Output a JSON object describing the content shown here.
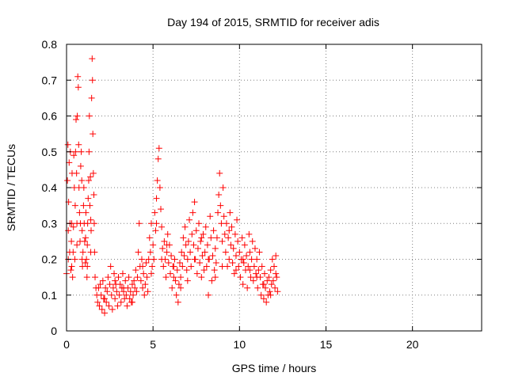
{
  "chart_data": {
    "type": "scatter",
    "title": "Day 194 of 2015, SRMTID for receiver adis",
    "xlabel": "GPS time / hours",
    "ylabel": "SRMTID / TECUs",
    "xlim": [
      0,
      24
    ],
    "ylim": [
      0,
      0.8
    ],
    "xticks": [
      0,
      5,
      10,
      15,
      20
    ],
    "yticks": [
      0,
      0.1,
      0.2,
      0.3,
      0.4,
      0.5,
      0.6,
      0.7,
      0.8
    ],
    "grid": true,
    "marker": "plus",
    "color": "#ff0000",
    "series": [
      {
        "name": "SRMTID",
        "points": [
          [
            0.0,
            0.16
          ],
          [
            0.05,
            0.42
          ],
          [
            0.08,
            0.52
          ],
          [
            0.1,
            0.28
          ],
          [
            0.12,
            0.36
          ],
          [
            0.15,
            0.47
          ],
          [
            0.18,
            0.22
          ],
          [
            0.2,
            0.3
          ],
          [
            0.22,
            0.5
          ],
          [
            0.25,
            0.17
          ],
          [
            0.28,
            0.25
          ],
          [
            0.3,
            0.3
          ],
          [
            0.32,
            0.44
          ],
          [
            0.35,
            0.15
          ],
          [
            0.38,
            0.22
          ],
          [
            0.4,
            0.29
          ],
          [
            0.42,
            0.49
          ],
          [
            0.45,
            0.4
          ],
          [
            0.48,
            0.2
          ],
          [
            0.5,
            0.35
          ],
          [
            0.52,
            0.5
          ],
          [
            0.55,
            0.59
          ],
          [
            0.58,
            0.44
          ],
          [
            0.6,
            0.3
          ],
          [
            0.62,
            0.6
          ],
          [
            0.65,
            0.71
          ],
          [
            0.68,
            0.68
          ],
          [
            0.7,
            0.52
          ],
          [
            0.72,
            0.4
          ],
          [
            0.75,
            0.33
          ],
          [
            0.78,
            0.25
          ],
          [
            0.8,
            0.3
          ],
          [
            0.82,
            0.46
          ],
          [
            0.85,
            0.5
          ],
          [
            0.88,
            0.42
          ],
          [
            0.9,
            0.28
          ],
          [
            0.92,
            0.18
          ],
          [
            0.95,
            0.22
          ],
          [
            0.98,
            0.35
          ],
          [
            1.0,
            0.4
          ],
          [
            1.02,
            0.3
          ],
          [
            1.05,
            0.25
          ],
          [
            1.08,
            0.19
          ],
          [
            1.1,
            0.26
          ],
          [
            1.12,
            0.33
          ],
          [
            1.15,
            0.2
          ],
          [
            1.18,
            0.15
          ],
          [
            1.2,
            0.24
          ],
          [
            1.22,
            0.3
          ],
          [
            1.25,
            0.37
          ],
          [
            1.28,
            0.42
          ],
          [
            1.3,
            0.5
          ],
          [
            1.32,
            0.6
          ],
          [
            1.35,
            0.35
          ],
          [
            1.38,
            0.43
          ],
          [
            1.4,
            0.31
          ],
          [
            1.42,
            0.28
          ],
          [
            1.45,
            0.65
          ],
          [
            1.48,
            0.76
          ],
          [
            1.5,
            0.7
          ],
          [
            1.52,
            0.55
          ],
          [
            1.55,
            0.44
          ],
          [
            1.58,
            0.38
          ],
          [
            1.6,
            0.3
          ],
          [
            1.62,
            0.22
          ],
          [
            1.65,
            0.15
          ],
          [
            1.7,
            0.12
          ],
          [
            1.75,
            0.1
          ],
          [
            1.8,
            0.08
          ],
          [
            1.85,
            0.12
          ],
          [
            1.9,
            0.07
          ],
          [
            1.95,
            0.13
          ],
          [
            2.0,
            0.1
          ],
          [
            2.05,
            0.06
          ],
          [
            2.1,
            0.14
          ],
          [
            2.15,
            0.09
          ],
          [
            2.2,
            0.05
          ],
          [
            2.25,
            0.12
          ],
          [
            2.3,
            0.08
          ],
          [
            2.35,
            0.11
          ],
          [
            2.4,
            0.15
          ],
          [
            2.45,
            0.07
          ],
          [
            2.5,
            0.13
          ],
          [
            2.55,
            0.18
          ],
          [
            2.6,
            0.1
          ],
          [
            2.65,
            0.06
          ],
          [
            2.7,
            0.12
          ],
          [
            2.75,
            0.16
          ],
          [
            2.8,
            0.09
          ],
          [
            2.85,
            0.13
          ],
          [
            2.9,
            0.11
          ],
          [
            2.95,
            0.07
          ],
          [
            3.0,
            0.15
          ],
          [
            3.05,
            0.1
          ],
          [
            3.1,
            0.13
          ],
          [
            3.15,
            0.08
          ],
          [
            3.2,
            0.12
          ],
          [
            3.25,
            0.16
          ],
          [
            3.3,
            0.11
          ],
          [
            3.35,
            0.09
          ],
          [
            3.4,
            0.14
          ],
          [
            3.45,
            0.1
          ],
          [
            3.5,
            0.07
          ],
          [
            3.55,
            0.12
          ],
          [
            3.6,
            0.15
          ],
          [
            3.65,
            0.09
          ],
          [
            3.7,
            0.11
          ],
          [
            3.75,
            0.08
          ],
          [
            3.8,
            0.13
          ],
          [
            3.85,
            0.1
          ],
          [
            3.9,
            0.14
          ],
          [
            3.95,
            0.12
          ],
          [
            4.0,
            0.17
          ],
          [
            4.05,
            0.11
          ],
          [
            4.1,
            0.15
          ],
          [
            4.15,
            0.22
          ],
          [
            4.2,
            0.3
          ],
          [
            4.25,
            0.18
          ],
          [
            4.3,
            0.14
          ],
          [
            4.35,
            0.2
          ],
          [
            4.4,
            0.12
          ],
          [
            4.45,
            0.16
          ],
          [
            4.5,
            0.1
          ],
          [
            4.55,
            0.13
          ],
          [
            4.6,
            0.19
          ],
          [
            4.65,
            0.15
          ],
          [
            4.7,
            0.11
          ],
          [
            4.75,
            0.2
          ],
          [
            4.8,
            0.26
          ],
          [
            4.85,
            0.22
          ],
          [
            4.9,
            0.3
          ],
          [
            4.95,
            0.18
          ],
          [
            5.0,
            0.24
          ],
          [
            5.05,
            0.2
          ],
          [
            5.1,
            0.33
          ],
          [
            5.15,
            0.28
          ],
          [
            5.2,
            0.37
          ],
          [
            5.25,
            0.42
          ],
          [
            5.3,
            0.48
          ],
          [
            5.35,
            0.51
          ],
          [
            5.4,
            0.4
          ],
          [
            5.45,
            0.34
          ],
          [
            5.5,
            0.29
          ],
          [
            5.55,
            0.23
          ],
          [
            5.6,
            0.18
          ],
          [
            5.65,
            0.25
          ],
          [
            5.7,
            0.2
          ],
          [
            5.75,
            0.15
          ],
          [
            5.8,
            0.22
          ],
          [
            5.85,
            0.27
          ],
          [
            5.9,
            0.19
          ],
          [
            5.95,
            0.24
          ],
          [
            6.0,
            0.16
          ],
          [
            6.05,
            0.21
          ],
          [
            6.1,
            0.12
          ],
          [
            6.15,
            0.18
          ],
          [
            6.2,
            0.15
          ],
          [
            6.25,
            0.2
          ],
          [
            6.3,
            0.14
          ],
          [
            6.35,
            0.1
          ],
          [
            6.4,
            0.17
          ],
          [
            6.45,
            0.08
          ],
          [
            6.5,
            0.13
          ],
          [
            6.55,
            0.19
          ],
          [
            6.6,
            0.15
          ],
          [
            6.65,
            0.22
          ],
          [
            6.7,
            0.18
          ],
          [
            6.75,
            0.26
          ],
          [
            6.8,
            0.21
          ],
          [
            6.85,
            0.29
          ],
          [
            6.9,
            0.24
          ],
          [
            6.95,
            0.17
          ],
          [
            7.0,
            0.2
          ],
          [
            7.05,
            0.25
          ],
          [
            7.1,
            0.31
          ],
          [
            7.15,
            0.22
          ],
          [
            7.2,
            0.18
          ],
          [
            7.25,
            0.27
          ],
          [
            7.3,
            0.33
          ],
          [
            7.35,
            0.24
          ],
          [
            7.4,
            0.36
          ],
          [
            7.45,
            0.2
          ],
          [
            7.5,
            0.28
          ],
          [
            7.55,
            0.16
          ],
          [
            7.6,
            0.23
          ],
          [
            7.65,
            0.3
          ],
          [
            7.7,
            0.19
          ],
          [
            7.75,
            0.25
          ],
          [
            7.8,
            0.15
          ],
          [
            7.85,
            0.21
          ],
          [
            7.9,
            0.27
          ],
          [
            7.95,
            0.17
          ],
          [
            8.0,
            0.22
          ],
          [
            8.05,
            0.29
          ],
          [
            8.1,
            0.18
          ],
          [
            8.15,
            0.24
          ],
          [
            8.2,
            0.1
          ],
          [
            8.25,
            0.2
          ],
          [
            8.3,
            0.32
          ],
          [
            8.35,
            0.26
          ],
          [
            8.4,
            0.14
          ],
          [
            8.45,
            0.21
          ],
          [
            8.5,
            0.28
          ],
          [
            8.55,
            0.17
          ],
          [
            8.6,
            0.23
          ],
          [
            8.65,
            0.19
          ],
          [
            8.7,
            0.26
          ],
          [
            8.75,
            0.33
          ],
          [
            8.8,
            0.38
          ],
          [
            8.85,
            0.44
          ],
          [
            8.9,
            0.35
          ],
          [
            8.95,
            0.3
          ],
          [
            9.0,
            0.25
          ],
          [
            9.05,
            0.4
          ],
          [
            9.1,
            0.32
          ],
          [
            9.15,
            0.27
          ],
          [
            9.2,
            0.22
          ],
          [
            9.25,
            0.3
          ],
          [
            9.3,
            0.18
          ],
          [
            9.35,
            0.26
          ],
          [
            9.4,
            0.2
          ],
          [
            9.45,
            0.33
          ],
          [
            9.5,
            0.24
          ],
          [
            9.55,
            0.29
          ],
          [
            9.6,
            0.19
          ],
          [
            9.65,
            0.23
          ],
          [
            9.7,
            0.16
          ],
          [
            9.75,
            0.27
          ],
          [
            9.8,
            0.21
          ],
          [
            9.85,
            0.31
          ],
          [
            9.9,
            0.25
          ],
          [
            9.95,
            0.18
          ],
          [
            10.0,
            0.22
          ],
          [
            10.05,
            0.15
          ],
          [
            10.1,
            0.2
          ],
          [
            10.15,
            0.26
          ],
          [
            10.2,
            0.13
          ],
          [
            10.25,
            0.19
          ],
          [
            10.3,
            0.24
          ],
          [
            10.35,
            0.17
          ],
          [
            10.4,
            0.21
          ],
          [
            10.45,
            0.12
          ],
          [
            10.5,
            0.18
          ],
          [
            10.55,
            0.27
          ],
          [
            10.6,
            0.22
          ],
          [
            10.65,
            0.15
          ],
          [
            10.7,
            0.2
          ],
          [
            10.75,
            0.25
          ],
          [
            10.8,
            0.14
          ],
          [
            10.85,
            0.18
          ],
          [
            10.9,
            0.23
          ],
          [
            10.95,
            0.16
          ],
          [
            11.0,
            0.2
          ],
          [
            11.05,
            0.12
          ],
          [
            11.1,
            0.17
          ],
          [
            11.15,
            0.22
          ],
          [
            11.2,
            0.15
          ],
          [
            11.25,
            0.1
          ],
          [
            11.3,
            0.18
          ],
          [
            11.35,
            0.13
          ],
          [
            11.4,
            0.09
          ],
          [
            11.45,
            0.16
          ],
          [
            11.5,
            0.12
          ],
          [
            11.55,
            0.08
          ],
          [
            11.6,
            0.14
          ],
          [
            11.65,
            0.1
          ],
          [
            11.7,
            0.15
          ],
          [
            11.75,
            0.11
          ],
          [
            11.8,
            0.17
          ],
          [
            11.85,
            0.13
          ],
          [
            11.9,
            0.2
          ],
          [
            11.95,
            0.14
          ],
          [
            12.0,
            0.18
          ],
          [
            12.05,
            0.12
          ],
          [
            12.1,
            0.21
          ],
          [
            12.15,
            0.15
          ],
          [
            12.2,
            0.11
          ],
          [
            0.1,
            0.2
          ],
          [
            0.3,
            0.18
          ],
          [
            0.6,
            0.24
          ],
          [
            0.9,
            0.2
          ],
          [
            1.2,
            0.18
          ],
          [
            1.4,
            0.22
          ],
          [
            2.2,
            0.09
          ],
          [
            2.8,
            0.14
          ],
          [
            3.3,
            0.12
          ],
          [
            3.8,
            0.08
          ],
          [
            4.4,
            0.18
          ],
          [
            4.9,
            0.16
          ],
          [
            5.2,
            0.3
          ],
          [
            5.5,
            0.2
          ],
          [
            5.8,
            0.24
          ],
          [
            6.2,
            0.18
          ],
          [
            6.6,
            0.12
          ],
          [
            7.0,
            0.14
          ],
          [
            7.4,
            0.2
          ],
          [
            7.8,
            0.26
          ],
          [
            8.2,
            0.2
          ],
          [
            8.6,
            0.15
          ],
          [
            9.0,
            0.18
          ],
          [
            9.4,
            0.28
          ],
          [
            9.8,
            0.17
          ],
          [
            10.2,
            0.2
          ],
          [
            10.6,
            0.17
          ],
          [
            11.0,
            0.15
          ],
          [
            11.4,
            0.13
          ],
          [
            11.8,
            0.1
          ],
          [
            12.1,
            0.16
          ]
        ]
      }
    ]
  }
}
